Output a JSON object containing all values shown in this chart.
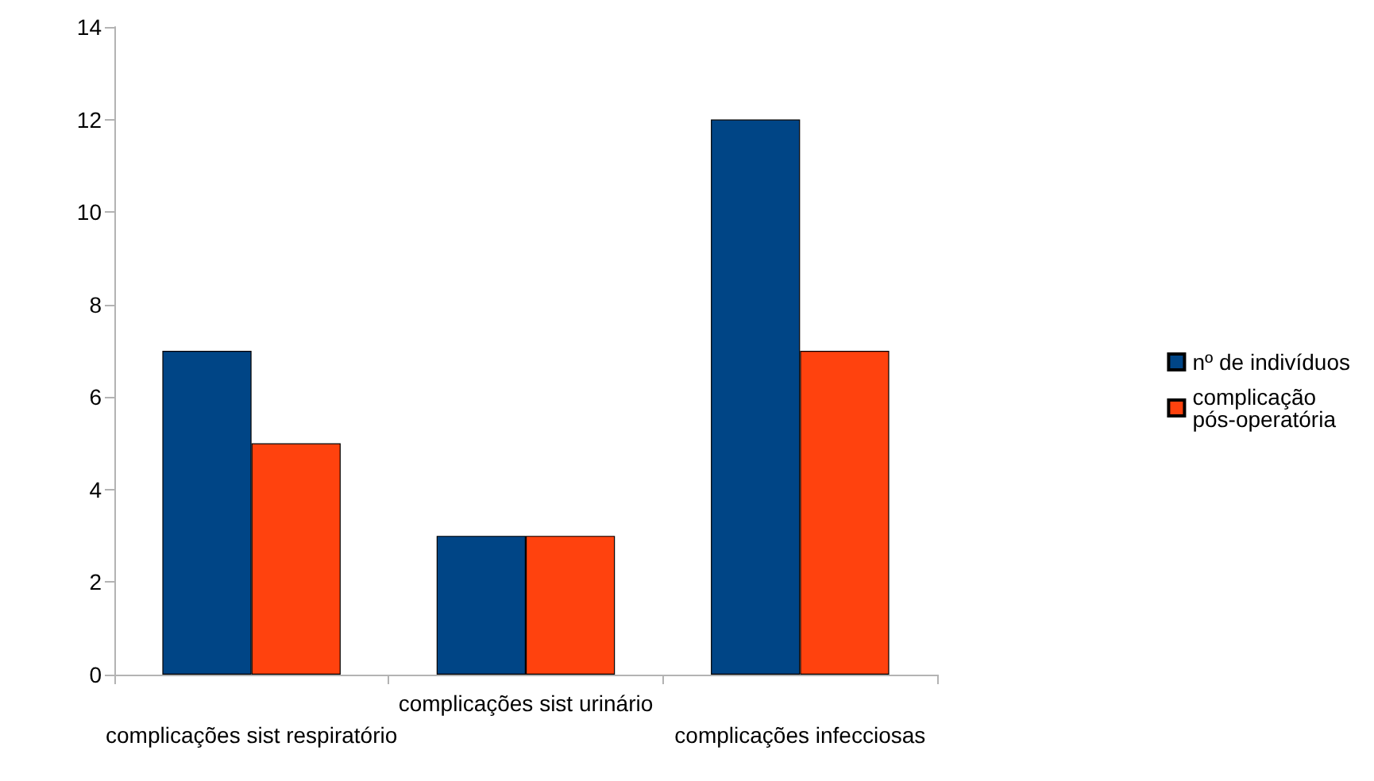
{
  "chart_data": {
    "type": "bar",
    "categories": [
      "complicações sist respiratório",
      "complicações sist urinário",
      "complicações infecciosas"
    ],
    "series": [
      {
        "name": "nº de indivíduos",
        "color": "#004586",
        "values": [
          7,
          3,
          12
        ]
      },
      {
        "name": "complicação pós-operatória",
        "color": "#ff420e",
        "values": [
          5,
          3,
          7
        ]
      }
    ],
    "ylim": [
      0,
      14
    ],
    "yticks": [
      0,
      2,
      4,
      6,
      8,
      10,
      12,
      14
    ],
    "legend": "right"
  }
}
